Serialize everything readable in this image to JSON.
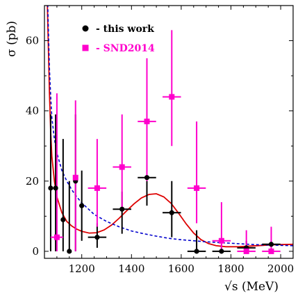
{
  "chart_data": {
    "type": "scatter",
    "xlabel": "√s (MeV)",
    "ylabel": "σ (pb)",
    "xlim": [
      1050,
      2050
    ],
    "ylim": [
      -2,
      70
    ],
    "x_ticks": [
      1200,
      1400,
      1600,
      1800,
      2000
    ],
    "y_ticks": [
      0,
      20,
      40,
      60
    ],
    "legend": {
      "placement": "top-left",
      "entries": [
        "- this work",
        "- SND2014"
      ]
    },
    "series": [
      {
        "name": "- this work",
        "marker": "circle",
        "color": "#000000",
        "points": [
          {
            "x": 1075,
            "xerr": 0,
            "y": 18,
            "ylo": 0,
            "yhi": 39
          },
          {
            "x": 1095,
            "xerr": 0,
            "y": 18,
            "ylo": 0,
            "yhi": 39
          },
          {
            "x": 1125,
            "xerr": 0,
            "y": 9,
            "ylo": 0,
            "yhi": 32
          },
          {
            "x": 1150,
            "xerr": 0,
            "y": 0,
            "ylo": 0,
            "yhi": 20
          },
          {
            "x": 1175,
            "xerr": 0,
            "y": 20,
            "ylo": 0,
            "yhi": 39
          },
          {
            "x": 1200,
            "xerr": 0,
            "y": 13,
            "ylo": 3,
            "yhi": 23
          },
          {
            "x": 1262,
            "xerr": 37,
            "y": 4,
            "ylo": 1,
            "yhi": 8
          },
          {
            "x": 1362,
            "xerr": 37,
            "y": 12,
            "ylo": 5,
            "yhi": 17
          },
          {
            "x": 1462,
            "xerr": 37,
            "y": 21,
            "ylo": 13,
            "yhi": 31
          },
          {
            "x": 1562,
            "xerr": 37,
            "y": 11,
            "ylo": 4,
            "yhi": 20
          },
          {
            "x": 1662,
            "xerr": 37,
            "y": 0,
            "ylo": 0,
            "yhi": 6
          },
          {
            "x": 1762,
            "xerr": 37,
            "y": 0,
            "ylo": 0,
            "yhi": 2
          },
          {
            "x": 1862,
            "xerr": 37,
            "y": 1,
            "ylo": 0,
            "yhi": 3
          },
          {
            "x": 1962,
            "xerr": 37,
            "y": 2,
            "ylo": 0,
            "yhi": 4
          }
        ]
      },
      {
        "name": "- SND2014",
        "marker": "square",
        "color": "#ff00cc",
        "points": [
          {
            "x": 1100,
            "xerr": 25,
            "y": 4,
            "ylo": 0,
            "yhi": 45
          },
          {
            "x": 1175,
            "xerr": 0,
            "y": 21,
            "ylo": 0,
            "yhi": 43
          },
          {
            "x": 1262,
            "xerr": 37,
            "y": 18,
            "ylo": 7,
            "yhi": 32
          },
          {
            "x": 1362,
            "xerr": 37,
            "y": 24,
            "ylo": 12,
            "yhi": 39
          },
          {
            "x": 1462,
            "xerr": 37,
            "y": 37,
            "ylo": 20,
            "yhi": 55
          },
          {
            "x": 1562,
            "xerr": 37,
            "y": 44,
            "ylo": 30,
            "yhi": 63
          },
          {
            "x": 1662,
            "xerr": 37,
            "y": 18,
            "ylo": 8,
            "yhi": 37
          },
          {
            "x": 1762,
            "xerr": 37,
            "y": 3,
            "ylo": 0,
            "yhi": 14
          },
          {
            "x": 1862,
            "xerr": 37,
            "y": 0,
            "ylo": 0,
            "yhi": 6
          },
          {
            "x": 1962,
            "xerr": 37,
            "y": 0,
            "ylo": 0,
            "yhi": 7
          }
        ]
      }
    ],
    "curves": [
      {
        "style": "solid",
        "color": "#dd0000",
        "points": [
          [
            1060,
            75
          ],
          [
            1065,
            60
          ],
          [
            1070,
            45
          ],
          [
            1075,
            34
          ],
          [
            1080,
            27
          ],
          [
            1090,
            20
          ],
          [
            1100,
            15.5
          ],
          [
            1120,
            11
          ],
          [
            1140,
            8.5
          ],
          [
            1160,
            7.2
          ],
          [
            1180,
            6.3
          ],
          [
            1200,
            5.7
          ],
          [
            1230,
            5.2
          ],
          [
            1260,
            5.3
          ],
          [
            1290,
            6.1
          ],
          [
            1320,
            7.5
          ],
          [
            1350,
            9.4
          ],
          [
            1380,
            11.5
          ],
          [
            1410,
            13.5
          ],
          [
            1440,
            15.2
          ],
          [
            1470,
            16.2
          ],
          [
            1500,
            16.4
          ],
          [
            1530,
            15.5
          ],
          [
            1560,
            13.6
          ],
          [
            1590,
            10.8
          ],
          [
            1620,
            7.8
          ],
          [
            1650,
            5.2
          ],
          [
            1680,
            3.3
          ],
          [
            1710,
            2.2
          ],
          [
            1740,
            1.6
          ],
          [
            1780,
            1.3
          ],
          [
            1830,
            1.3
          ],
          [
            1880,
            1.5
          ],
          [
            1930,
            1.7
          ],
          [
            1980,
            1.9
          ],
          [
            2050,
            2.0
          ]
        ]
      },
      {
        "style": "dashed",
        "color": "#0000cc",
        "points": [
          [
            1060,
            80
          ],
          [
            1065,
            65
          ],
          [
            1070,
            52
          ],
          [
            1075,
            44
          ],
          [
            1080,
            38
          ],
          [
            1090,
            32
          ],
          [
            1100,
            28
          ],
          [
            1120,
            23
          ],
          [
            1140,
            20
          ],
          [
            1160,
            17.5
          ],
          [
            1180,
            15.5
          ],
          [
            1200,
            13.8
          ],
          [
            1250,
            10.5
          ],
          [
            1300,
            8.5
          ],
          [
            1350,
            7
          ],
          [
            1400,
            5.8
          ],
          [
            1450,
            5
          ],
          [
            1500,
            4.3
          ],
          [
            1550,
            3.7
          ],
          [
            1600,
            3.3
          ],
          [
            1650,
            3.0
          ],
          [
            1700,
            2.7
          ],
          [
            1750,
            2.5
          ],
          [
            1800,
            2.3
          ],
          [
            1850,
            2.1
          ],
          [
            1900,
            1.9
          ],
          [
            1950,
            1.8
          ],
          [
            2000,
            1.7
          ],
          [
            2050,
            1.6
          ]
        ]
      }
    ]
  }
}
